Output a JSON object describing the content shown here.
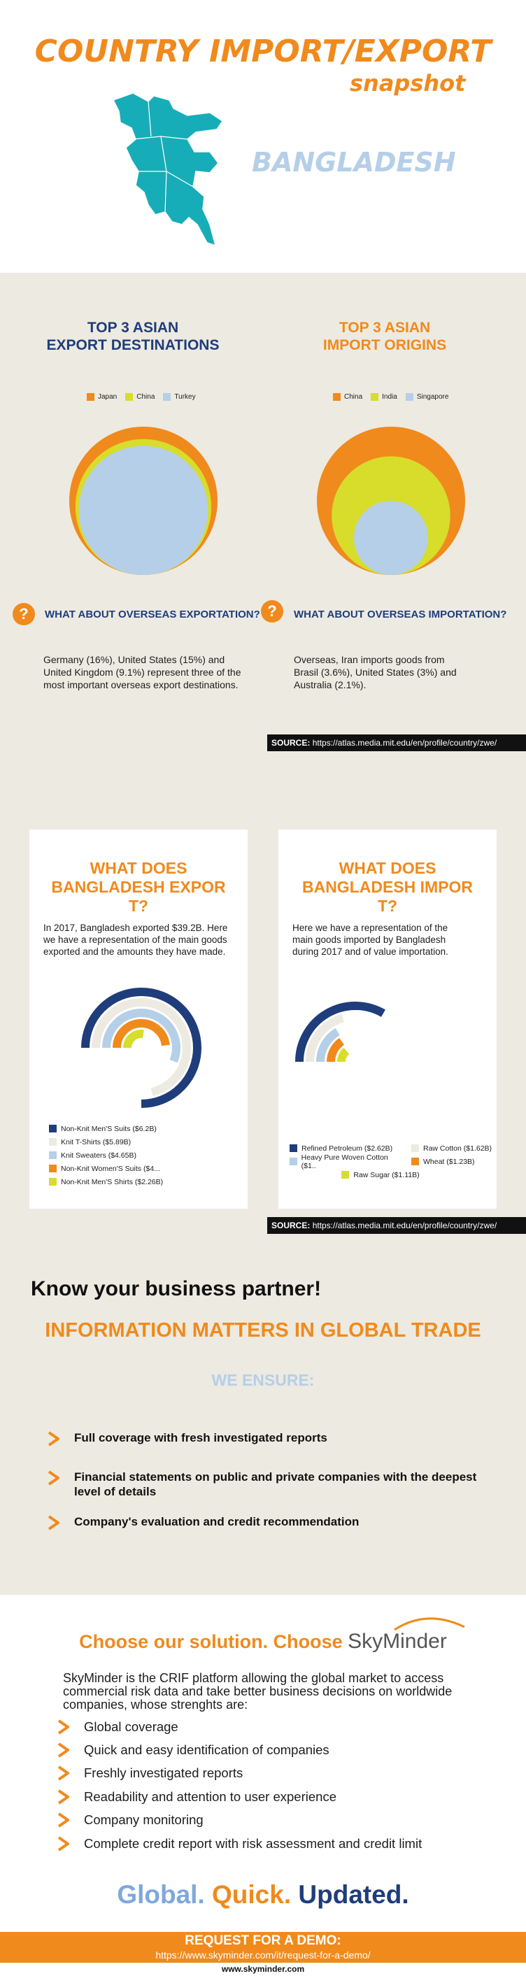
{
  "header": {
    "title": "COUNTRY IMPORT/EXPORT",
    "subtitle": "snapshot",
    "country": "BANGLADESH",
    "map_color": "#17adb8"
  },
  "destinations": {
    "export": {
      "heading_line1": "TOP 3 ASIAN",
      "heading_line2": "EXPORT DESTINATIONS",
      "legend": [
        {
          "label": "Japan",
          "color": "#f08a1c"
        },
        {
          "label": "China",
          "color": "#d7dd2a"
        },
        {
          "label": "Turkey",
          "color": "#b5cfe8"
        }
      ],
      "question": "WHAT ABOUT OVERSEAS EXPORTATION?",
      "text": "Germany  (16%), United States (15%) and United Kingdom (9.1%)  represent three of the most important overseas export destinations."
    },
    "import": {
      "heading_line1": "TOP 3 ASIAN",
      "heading_line2": "IMPORT ORIGINS",
      "legend": [
        {
          "label": "China",
          "color": "#f08a1c"
        },
        {
          "label": "India",
          "color": "#d7dd2a"
        },
        {
          "label": "Singapore",
          "color": "#b5cfe8"
        }
      ],
      "question": "WHAT ABOUT OVERSEAS IMPORTATION?",
      "text": "Overseas,  Iran  imports goods from Brasil (3.6%), United States  (3%) and Australia (2.1%)."
    },
    "source_label": "SOURCE:",
    "source_url": "https://atlas.media.mit.edu/en/profile/country/zwe/"
  },
  "goods": {
    "export": {
      "title": "WHAT DOES BANGLADESH EXPOR T?",
      "text": "In 2017, Bangladesh  exported $39.2B. Here we have a representation of the main goods exported and the amounts they have made.",
      "legend": [
        {
          "label": "Non-Knit Men'S Suits ($6.2B)",
          "color": "#1f3d7a"
        },
        {
          "label": "Knit T-Shirts ($5.89B)",
          "color": "#edeae1"
        },
        {
          "label": "Knit Sweaters ($4.65B)",
          "color": "#b5cfe8"
        },
        {
          "label": "Non-Knit Women'S Suits ($4...",
          "color": "#f08a1c"
        },
        {
          "label": "Non-Knit Men'S Shirts ($2.26B)",
          "color": "#d7dd2a"
        }
      ]
    },
    "import": {
      "title": "WHAT DOES BANGLADESH IMPOR T?",
      "text": "Here we have a representation of the main goods imported by Bangladesh  during 2017  and of value importation.",
      "legend": [
        {
          "label": "Refined Petroleum ($2.62B)",
          "color": "#1f3d7a"
        },
        {
          "label": "Raw Cotton ($1.62B)",
          "color": "#edeae1"
        },
        {
          "label": "Heavy Pure Woven Cotton ($1..",
          "color": "#b5cfe8"
        },
        {
          "label": "Wheat ($1.23B)",
          "color": "#f08a1c"
        },
        {
          "label": "Raw Sugar ($1.11B)",
          "color": "#d7dd2a"
        }
      ]
    },
    "source_label": "SOURCE:",
    "source_url": "https://atlas.media.mit.edu/en/profile/country/zwe/"
  },
  "partner": {
    "heading": "Know your business partner!",
    "tagline": "INFORMATION MATTERS IN GLOBAL TRADE",
    "ensure_heading": "WE ENSURE:",
    "items": [
      "Full coverage with fresh investigated reports",
      "Financial statements on public and private companies with the deepest level of details",
      "Company's evaluation and credit recommendation"
    ]
  },
  "solution": {
    "heading": "Choose our solution. Choose",
    "brand": "SkyMinder",
    "intro": "SkyMinder is the CRIF platform allowing the global market to access commercial risk data and take better business decisions on worldwide companies, whose strenghts are:",
    "features": [
      "Global coverage",
      "Quick and easy identification of companies",
      "Freshly investigated reports",
      "Readability and attention to user experience",
      "Company monitoring",
      "Complete credit report with risk assessment and credit limit"
    ],
    "tagline_parts": [
      {
        "text": "Global.",
        "color": "#7fa8dc"
      },
      {
        "text": "Quick.",
        "color": "#f08a1c"
      },
      {
        "text": "Updated.",
        "color": "#1f3d7a"
      }
    ],
    "demo_title": "REQUEST FOR A DEMO:",
    "demo_url": "https://www.skyminder.com/it/request-for-a-demo/",
    "site_url": "www.skyminder.com"
  },
  "chart_data": [
    {
      "type": "bubble",
      "title": "TOP 3 ASIAN EXPORT DESTINATIONS",
      "categories": [
        "Japan",
        "China",
        "Turkey"
      ],
      "values": [
        100,
        84,
        76
      ]
    },
    {
      "type": "bubble",
      "title": "TOP 3 ASIAN IMPORT ORIGINS",
      "categories": [
        "China",
        "India",
        "Singapore"
      ],
      "values": [
        100,
        64,
        25
      ]
    },
    {
      "type": "radial-bar",
      "title": "WHAT DOES BANGLADESH EXPOR T?",
      "categories": [
        "Non-Knit Men'S Suits",
        "Knit T-Shirts",
        "Knit Sweaters",
        "Non-Knit Women'S Suits",
        "Non-Knit Men'S Shirts"
      ],
      "values": [
        6.2,
        5.89,
        4.65,
        4.0,
        2.26
      ],
      "unit": "$B"
    },
    {
      "type": "radial-bar",
      "title": "WHAT DOES BANGLADESH IMPOR T?",
      "categories": [
        "Refined Petroleum",
        "Raw Cotton",
        "Heavy Pure Woven Cotton",
        "Wheat",
        "Raw Sugar"
      ],
      "values": [
        2.62,
        1.62,
        1.3,
        1.23,
        1.11
      ],
      "unit": "$B"
    }
  ]
}
